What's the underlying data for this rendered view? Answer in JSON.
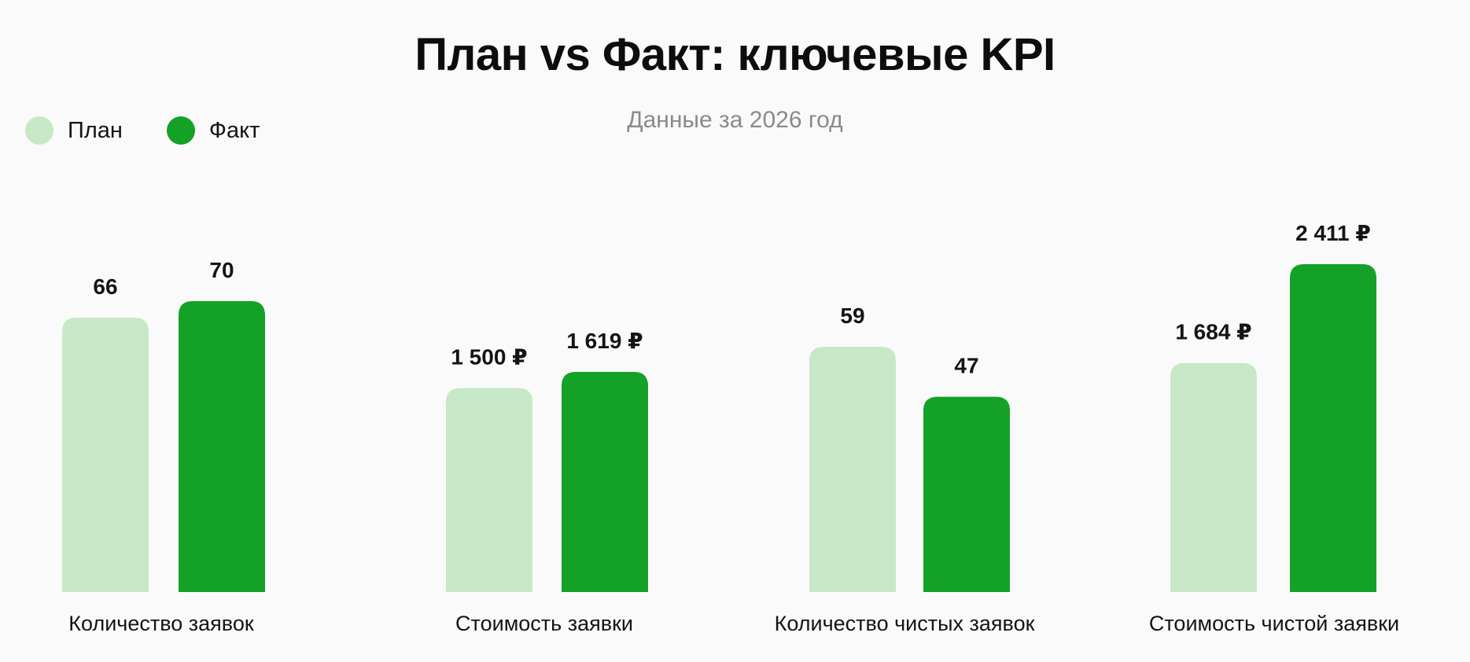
{
  "chart_data": {
    "type": "bar",
    "title": "План vs Факт: ключевые KPI",
    "subtitle": "Данные за 2026 год",
    "legend_position": "top-left",
    "grid": false,
    "categories": [
      "Количество заявок",
      "Стоимость заявки",
      "Количество чистых заявок",
      "Стоимость чистой заявки"
    ],
    "series": [
      {
        "name": "План",
        "color": "#c7e8c6",
        "values": [
          66,
          1500,
          59,
          1684
        ],
        "labels": [
          "66",
          "1 500 ₽",
          "59",
          "1 684 ₽"
        ]
      },
      {
        "name": "Факт",
        "color": "#14a128",
        "values": [
          70,
          1619,
          47,
          2411
        ],
        "labels": [
          "70",
          "1 619 ₽",
          "47",
          "2 411 ₽"
        ]
      }
    ]
  }
}
